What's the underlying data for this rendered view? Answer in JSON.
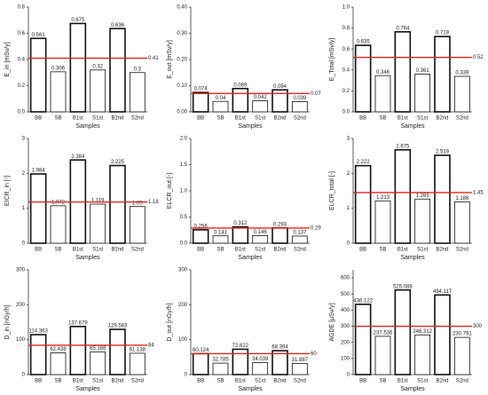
{
  "chart_data": [
    {
      "type": "bar",
      "ylabel": "E_in [mSv/y]",
      "xlabel": "Samples",
      "categories": [
        "BB",
        "SB",
        "B1st",
        "S1st",
        "B2nd",
        "S2nd"
      ],
      "values": [
        0.561,
        0.306,
        0.675,
        0.32,
        0.636,
        0.3
      ],
      "ylim": [
        0,
        0.8
      ],
      "yticks": [
        {
          "value": 0,
          "label": "0.0"
        },
        0.2,
        0.4,
        0.6,
        0.8
      ],
      "ref_line": {
        "value": 0.41,
        "color": "#e3241b"
      }
    },
    {
      "type": "bar",
      "ylabel": "E_out [mSv/y]",
      "xlabel": "Samples",
      "categories": [
        "BB",
        "SB",
        "B1st",
        "S1st",
        "B2nd",
        "S2nd"
      ],
      "values": [
        0.074,
        0.04,
        0.089,
        0.042,
        0.084,
        0.039
      ],
      "ylim": [
        0,
        0.4
      ],
      "yticks": [
        {
          "value": 0,
          "label": "0.00"
        },
        {
          "value": 0.1,
          "label": "0.10"
        },
        {
          "value": 0.2,
          "label": "0.20"
        },
        {
          "value": 0.3,
          "label": "0.30"
        },
        {
          "value": 0.4,
          "label": "0.40"
        }
      ],
      "ref_line": {
        "value": 0.07,
        "color": "#e3241b"
      }
    },
    {
      "type": "bar",
      "ylabel": "E_Total [mSv/y]",
      "xlabel": "Samples",
      "categories": [
        "BB",
        "SB",
        "B1st",
        "S1st",
        "B2nd",
        "S2nd"
      ],
      "values": [
        0.635,
        0.346,
        0.764,
        0.361,
        0.719,
        0.339
      ],
      "ylim": [
        0,
        1
      ],
      "yticks": [
        {
          "value": 0,
          "label": "0.0"
        },
        0.2,
        0.4,
        0.6,
        0.8,
        {
          "value": 1,
          "label": "1.0"
        }
      ],
      "ref_line": {
        "value": 0.52,
        "color": "#e3241b"
      }
    },
    {
      "type": "bar",
      "ylabel": "EICR_in [-]",
      "xlabel": "Samples",
      "categories": [
        "BB",
        "SB",
        "B1st",
        "S1st",
        "B2nd",
        "S2nd"
      ],
      "values": [
        1.984,
        1.072,
        2.384,
        1.119,
        2.225,
        1.05
      ],
      "ylim": [
        0,
        3
      ],
      "yticks": [
        0,
        1,
        2,
        3
      ],
      "ref_line": {
        "value": 1.18,
        "color": "#e3241b"
      }
    },
    {
      "type": "bar",
      "ylabel": "ELCR_out [-]",
      "xlabel": "Samples",
      "categories": [
        "BB",
        "SB",
        "B1st",
        "S1st",
        "B2nd",
        "S2nd"
      ],
      "values": [
        0.256,
        0.141,
        0.312,
        0.146,
        0.293,
        0.137
      ],
      "ylim": [
        0,
        2
      ],
      "yticks": [
        {
          "value": 0,
          "label": "0.0"
        },
        0.5,
        {
          "value": 1,
          "label": "1.0"
        },
        1.5,
        {
          "value": 2,
          "label": "2.0"
        }
      ],
      "ref_line": {
        "value": 0.29,
        "color": "#e3241b"
      }
    },
    {
      "type": "bar",
      "ylabel": "ELCR_total [-]",
      "xlabel": "Samples",
      "categories": [
        "BB",
        "SB",
        "B1st",
        "S1st",
        "B2nd",
        "S2nd"
      ],
      "values": [
        2.222,
        1.213,
        2.675,
        1.265,
        2.519,
        1.186
      ],
      "ylim": [
        0,
        3
      ],
      "yticks": [
        0,
        1,
        2,
        3
      ],
      "ref_line": {
        "value": 1.45,
        "color": "#e3241b"
      }
    },
    {
      "type": "bar",
      "ylabel": "D_in [nGy/h]",
      "xlabel": "Samples",
      "categories": [
        "BB",
        "SB",
        "B1st",
        "S1st",
        "B2nd",
        "S2nd"
      ],
      "values": [
        114.363,
        62.438,
        137.679,
        65.168,
        129.583,
        61.138
      ],
      "ylim": [
        0,
        300
      ],
      "yticks": [
        0,
        100,
        200,
        300
      ],
      "ref_line": {
        "value": 84,
        "color": "#e3241b"
      }
    },
    {
      "type": "bar",
      "ylabel": "D_out [nGy/h]",
      "xlabel": "Samples",
      "categories": [
        "BB",
        "SB",
        "B1st",
        "S1st",
        "B2nd",
        "S2nd"
      ],
      "values": [
        60.124,
        32.785,
        72.622,
        34.039,
        68.394,
        31.887
      ],
      "ylim": [
        0,
        300
      ],
      "yticks": [
        0,
        100,
        200,
        300
      ],
      "ref_line": {
        "value": 60,
        "color": "#e3241b"
      }
    },
    {
      "type": "bar",
      "ylabel": "AGDE [μSv/y]",
      "xlabel": "Samples",
      "categories": [
        "BB",
        "SB",
        "B1st",
        "S1st",
        "B2nd",
        "S2nd"
      ],
      "values": [
        436.122,
        237.536,
        525.088,
        246.312,
        494.117,
        230.791
      ],
      "ylim": [
        0,
        650
      ],
      "yticks": [
        0,
        100,
        200,
        300,
        400,
        500,
        600
      ],
      "ref_line": {
        "value": 300,
        "color": "#e3241b"
      }
    }
  ]
}
